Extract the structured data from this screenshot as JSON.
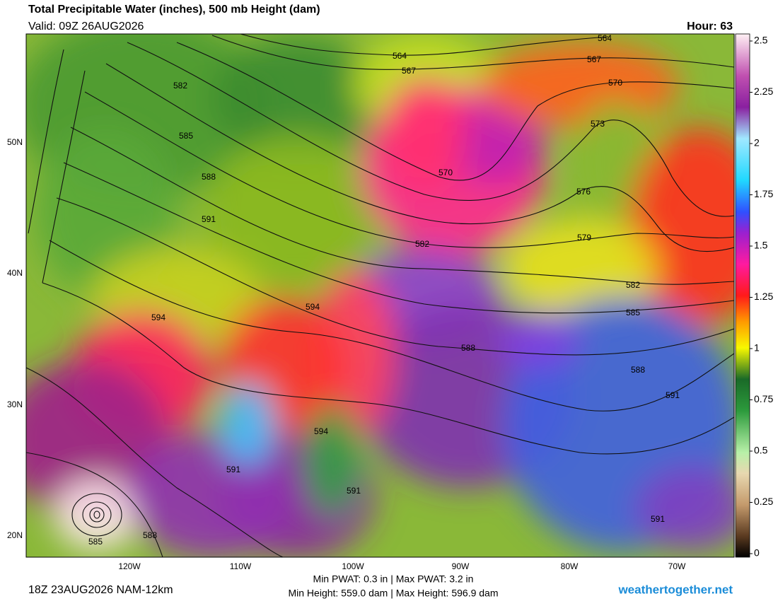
{
  "header": {
    "title": "Total Precipitable Water (inches), 500 mb Height (dam)",
    "valid": "Valid: 09Z 26AUG2026",
    "hour": "Hour: 63"
  },
  "map": {
    "lon_labels": [
      "120W",
      "110W",
      "100W",
      "90W",
      "80W",
      "70W"
    ],
    "lat_labels": [
      "50N",
      "40N",
      "30N",
      "20N"
    ],
    "contour_labels": [
      "564",
      "564",
      "567",
      "567",
      "570",
      "570",
      "573",
      "576",
      "579",
      "582",
      "582",
      "582",
      "585",
      "585",
      "585",
      "588",
      "588",
      "588",
      "588",
      "591",
      "591",
      "591",
      "591",
      "591",
      "594",
      "594",
      "594"
    ]
  },
  "colorbar": {
    "lim": [
      0,
      2.5
    ],
    "ticks": [
      0,
      0.25,
      0.5,
      0.75,
      1,
      1.25,
      1.5,
      1.75,
      2,
      2.25,
      2.5
    ]
  },
  "footer": {
    "run": "18Z 23AUG2026 NAM-12km",
    "stats": [
      "Min PWAT:   0.3 in | Max PWAT:   3.2 in",
      "Min Height: 559.0 dam | Max Height: 596.9 dam"
    ],
    "credit": "weathertogether.net"
  }
}
